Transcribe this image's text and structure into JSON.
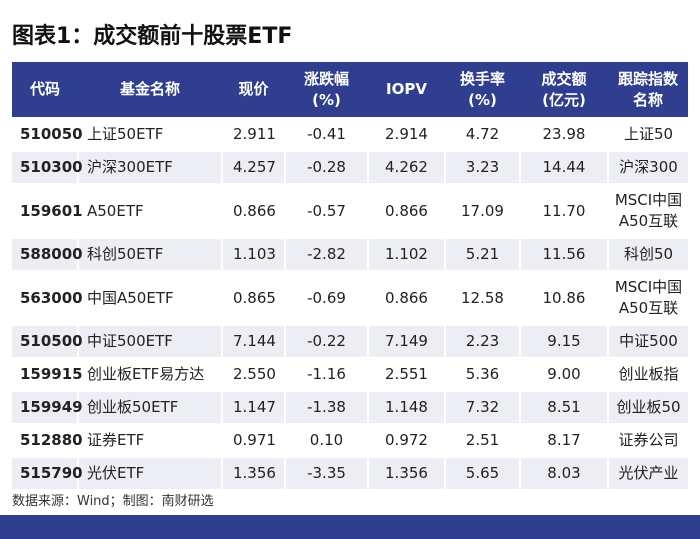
{
  "header": {
    "title": "图表1：成交额前十股票ETF"
  },
  "table": {
    "columns": [
      "代码",
      "基金名称",
      "现价",
      "涨跌幅\n(%)",
      "IOPV",
      "换手率\n(%)",
      "成交额\n(亿元)",
      "跟踪指数\n名称"
    ],
    "rows": [
      [
        "510050",
        "上证50ETF",
        "2.911",
        "-0.41",
        "2.914",
        "4.72",
        "23.98",
        "上证50"
      ],
      [
        "510300",
        "沪深300ETF",
        "4.257",
        "-0.28",
        "4.262",
        "3.23",
        "14.44",
        "沪深300"
      ],
      [
        "159601",
        "A50ETF",
        "0.866",
        "-0.57",
        "0.866",
        "17.09",
        "11.70",
        "MSCI中国\nA50互联"
      ],
      [
        "588000",
        "科创50ETF",
        "1.103",
        "-2.82",
        "1.102",
        "5.21",
        "11.56",
        "科创50"
      ],
      [
        "563000",
        "中国A50ETF",
        "0.865",
        "-0.69",
        "0.866",
        "12.58",
        "10.86",
        "MSCI中国\nA50互联"
      ],
      [
        "510500",
        "中证500ETF",
        "7.144",
        "-0.22",
        "7.149",
        "2.23",
        "9.15",
        "中证500"
      ],
      [
        "159915",
        "创业板ETF易方达",
        "2.550",
        "-1.16",
        "2.551",
        "5.36",
        "9.00",
        "创业板指"
      ],
      [
        "159949",
        "创业板50ETF",
        "1.147",
        "-1.38",
        "1.148",
        "7.32",
        "8.51",
        "创业板50"
      ],
      [
        "512880",
        "证券ETF",
        "0.971",
        "0.10",
        "0.972",
        "2.51",
        "8.17",
        "证券公司"
      ],
      [
        "515790",
        "光伏ETF",
        "1.356",
        "-3.35",
        "1.356",
        "5.65",
        "8.03",
        "光伏产业"
      ]
    ]
  },
  "footer": {
    "source": "数据来源：Wind；制图：南财研选"
  }
}
